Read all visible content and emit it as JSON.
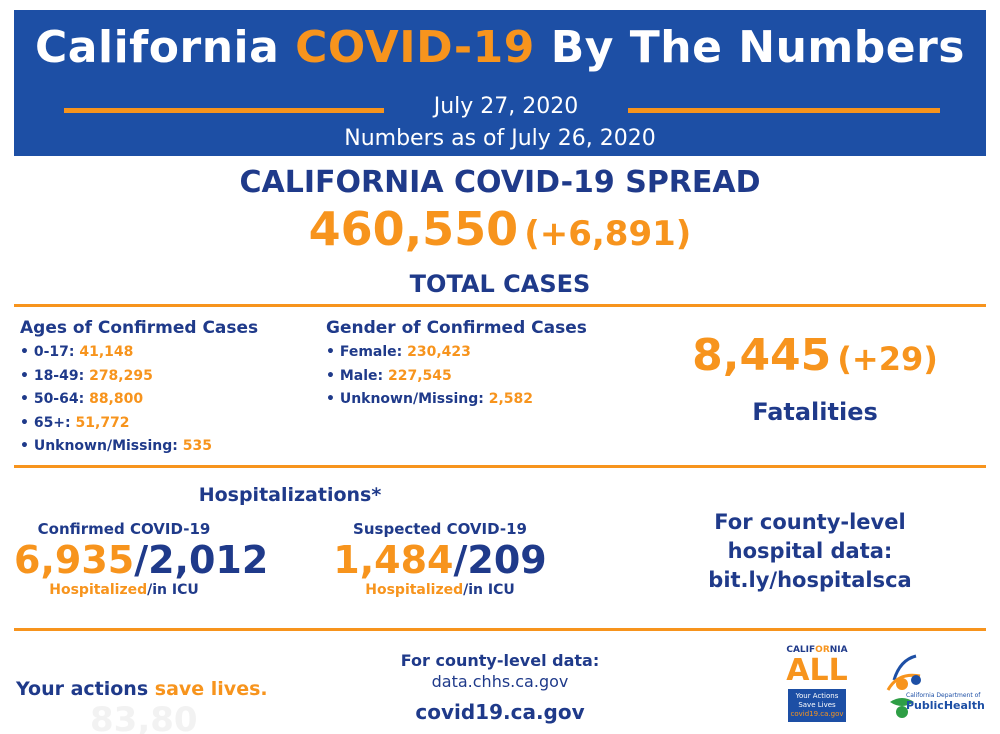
{
  "banner": {
    "title_pre": "California ",
    "title_highlight": "COVID-19",
    "title_post": " By The Numbers",
    "date": "July 27, 2020",
    "as_of": "Numbers as of July 26, 2020"
  },
  "spread": {
    "title": "CALIFORNIA COVID-19 SPREAD",
    "total": "460,550",
    "delta": "(+6,891)",
    "label": "TOTAL CASES"
  },
  "ages": {
    "title": "Ages of Confirmed Cases",
    "items": [
      {
        "label": "• 0-17: ",
        "value": "41,148"
      },
      {
        "label": "• 18-49: ",
        "value": "278,295"
      },
      {
        "label": "• 50-64: ",
        "value": "88,800"
      },
      {
        "label": "• 65+: ",
        "value": "51,772"
      },
      {
        "label": "• Unknown/Missing: ",
        "value": "535"
      }
    ]
  },
  "gender": {
    "title": "Gender of Confirmed Cases",
    "items": [
      {
        "label": "• Female: ",
        "value": "230,423"
      },
      {
        "label": "• Male: ",
        "value": "227,545"
      },
      {
        "label": "• Unknown/Missing: ",
        "value": "2,582"
      }
    ]
  },
  "fatalities": {
    "count": "8,445",
    "delta": "(+29)",
    "label": "Fatalities"
  },
  "hospitalizations": {
    "title": "Hospitalizations*",
    "confirmed": {
      "label": "Confirmed COVID-19",
      "hospitalized": "6,935",
      "icu": "/2,012",
      "cap_hosp": "Hospitalized",
      "cap_icu": "/in ICU"
    },
    "suspected": {
      "label": "Suspected COVID-19",
      "hospitalized": "1,484",
      "icu": "/209",
      "cap_hosp": "Hospitalized",
      "cap_icu": "/in ICU"
    },
    "county_link": [
      "For county-level",
      "hospital data:",
      "bit.ly/hospitalsca"
    ]
  },
  "footer": {
    "actions_pre": "Your actions ",
    "actions_hl": "save lives.",
    "ghost_text": "83,80",
    "county_data_label": "For county-level data:",
    "county_data_url": "data.chhs.ca.gov",
    "covid_url": "covid19.ca.gov",
    "ca_all_pre": "CALIF",
    "ca_all_hl": "OR",
    "ca_all_post": "NIA",
    "ca_all_big": "ALL",
    "ca_all_line1": "Your Actions",
    "ca_all_line2": "Save Lives",
    "ca_all_url": "covid19.ca.gov",
    "cdph_small": "California Department of",
    "cdph_big": "PublicHealth"
  },
  "colors": {
    "brand_blue": "#1d4fa5",
    "navy": "#1f3a8a",
    "orange": "#f7941d"
  }
}
